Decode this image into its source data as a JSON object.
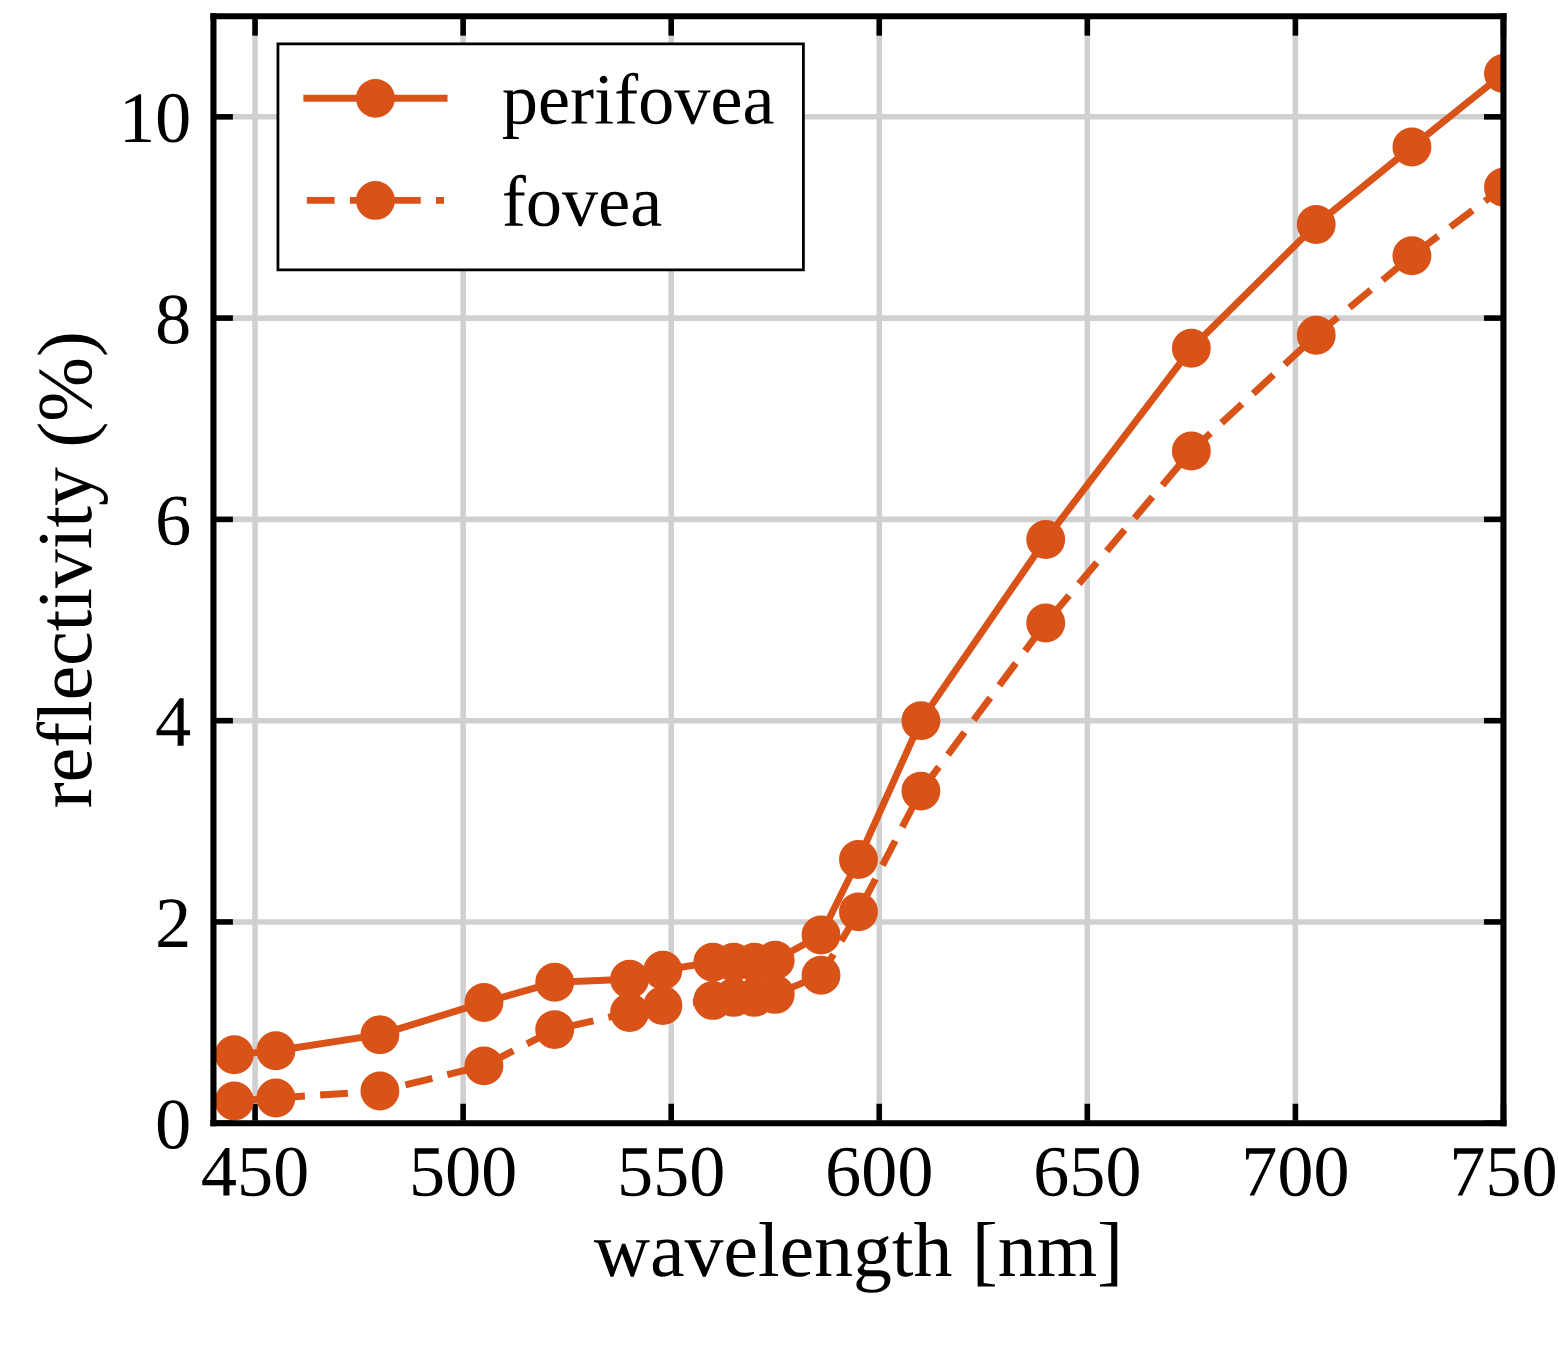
{
  "chart_data": {
    "type": "line",
    "xlabel": "wavelength [nm]",
    "ylabel": "reflectivity (%)",
    "x": [
      445,
      455,
      480,
      505,
      522,
      540,
      548,
      560,
      565,
      570,
      575,
      586,
      595,
      610,
      640,
      675,
      705,
      728,
      750
    ],
    "series": [
      {
        "name": "perifovea",
        "color": "#d95319",
        "line_style": "solid",
        "values": [
          0.68,
          0.72,
          0.88,
          1.2,
          1.4,
          1.43,
          1.52,
          1.6,
          1.6,
          1.6,
          1.62,
          1.87,
          2.62,
          4.0,
          5.8,
          7.7,
          8.93,
          9.7,
          10.43
        ]
      },
      {
        "name": "fovea",
        "color": "#d95319",
        "line_style": "dashed",
        "values": [
          0.22,
          0.25,
          0.32,
          0.57,
          0.93,
          1.1,
          1.17,
          1.22,
          1.25,
          1.25,
          1.28,
          1.47,
          2.1,
          3.3,
          4.97,
          6.68,
          7.83,
          8.62,
          9.3
        ]
      }
    ],
    "marker": "circle",
    "xlim": [
      440,
      750
    ],
    "ylim": [
      0,
      11
    ],
    "xticks": [
      450,
      500,
      550,
      600,
      650,
      700,
      750
    ],
    "yticks": [
      0,
      2,
      4,
      6,
      8,
      10
    ],
    "grid": true,
    "legend": "top left"
  }
}
